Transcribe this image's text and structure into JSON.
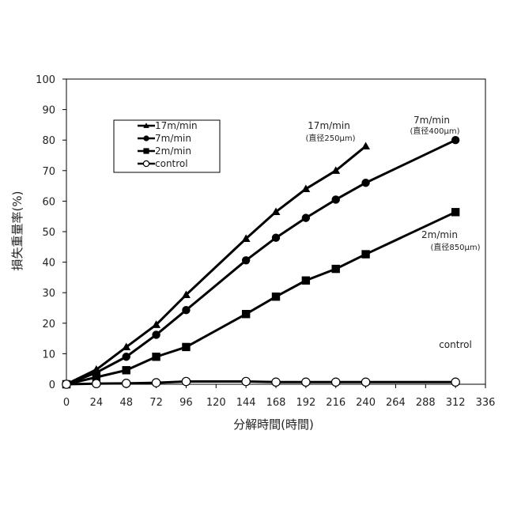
{
  "chart_data": {
    "type": "line",
    "xlabel": "分解時間(時間)",
    "ylabel": "損失重量率(%)",
    "xlim": [
      0,
      336
    ],
    "ylim": [
      0,
      100
    ],
    "x_ticks": [
      0,
      24,
      48,
      72,
      96,
      120,
      144,
      168,
      192,
      216,
      240,
      264,
      288,
      312,
      336
    ],
    "y_ticks": [
      0,
      10,
      20,
      30,
      40,
      50,
      60,
      70,
      80,
      90,
      100
    ],
    "grid": false,
    "legend_position": "top-left",
    "series": [
      {
        "name": "17m/min",
        "marker": "triangle",
        "x": [
          0,
          24,
          48,
          72,
          96,
          144,
          168,
          192,
          216,
          240
        ],
        "values": [
          0,
          4.8,
          12.2,
          19.5,
          29.3,
          47.7,
          56.5,
          64,
          70,
          78
        ]
      },
      {
        "name": "7m/min",
        "marker": "circle",
        "x": [
          0,
          24,
          48,
          72,
          96,
          144,
          168,
          192,
          216,
          240,
          312
        ],
        "values": [
          0,
          3.8,
          9,
          16.2,
          24.3,
          40.6,
          48,
          54.5,
          60.5,
          66,
          80
        ]
      },
      {
        "name": "2m/min",
        "marker": "square",
        "x": [
          0,
          24,
          48,
          72,
          96,
          144,
          168,
          192,
          216,
          240,
          312
        ],
        "values": [
          0,
          2.3,
          4.6,
          9,
          12.2,
          23,
          28.7,
          34,
          37.8,
          42.6,
          56.4
        ]
      },
      {
        "name": "control",
        "marker": "open-circle",
        "x": [
          0,
          24,
          48,
          72,
          96,
          144,
          168,
          192,
          216,
          240,
          312
        ],
        "values": [
          0,
          0.2,
          0.3,
          0.5,
          0.9,
          0.9,
          0.7,
          0.7,
          0.7,
          0.7,
          0.7
        ]
      }
    ],
    "annotations": [
      {
        "name": "ann-17",
        "text": "17m/min",
        "sub": "(直径250μm)"
      },
      {
        "name": "ann-7",
        "text": "7m/min",
        "sub": "(直径400μm)"
      },
      {
        "name": "ann-2",
        "text": "2m/min",
        "sub": "(直径850μm)"
      },
      {
        "name": "ann-control",
        "text": "control",
        "sub": ""
      }
    ]
  }
}
